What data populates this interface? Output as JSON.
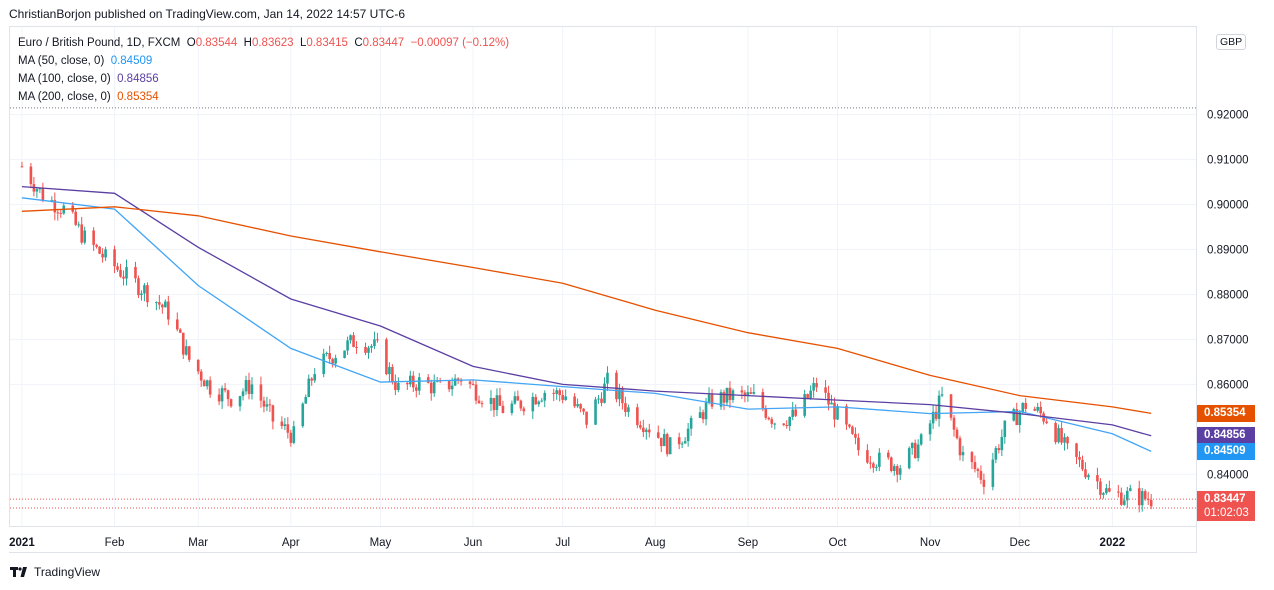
{
  "header": {
    "publisher_text": "ChristianBorjon published on TradingView.com, Jan 14, 2022 14:57 UTC-6"
  },
  "legend": {
    "symbol": "Euro / British Pound, 1D, FXCM",
    "ohlc": {
      "o_label": "O",
      "o": "0.83544",
      "h_label": "H",
      "h": "0.83623",
      "l_label": "L",
      "l": "0.83415",
      "c_label": "C",
      "c": "0.83447",
      "change": "−0.00097 (−0.12%)"
    },
    "ma50": {
      "label": "MA (50, close, 0)",
      "value": "0.84509"
    },
    "ma100": {
      "label": "MA (100, close, 0)",
      "value": "0.84856"
    },
    "ma200": {
      "label": "MA (200, close, 0)",
      "value": "0.85354"
    }
  },
  "currency_badge": "GBP",
  "price_tags": {
    "ma200": "0.85354",
    "ma100": "0.84856",
    "ma50": "0.84509",
    "current": "0.83447",
    "countdown": "01:02:03"
  },
  "footer": {
    "brand": "TradingView"
  },
  "colors": {
    "up": "#26a69a",
    "down": "#ef5350",
    "ma50": "#42a5f5",
    "ma100": "#5b3fa3",
    "ma200": "#e65100",
    "grid": "#f0f3fa"
  },
  "chart_data": {
    "type": "line",
    "title": "Euro / British Pound, 1D, FXCM",
    "price_axis": {
      "ticks": [
        0.92,
        0.91,
        0.9,
        0.89,
        0.88,
        0.87,
        0.86,
        0.84
      ],
      "tick_labels": [
        "0.92000",
        "0.91000",
        "0.90000",
        "0.89000",
        "0.88000",
        "0.87000",
        "0.86000",
        "0.84000"
      ],
      "ylim": [
        0.8285,
        0.9395
      ]
    },
    "time_axis": {
      "labels": [
        "2021",
        "Feb",
        "Mar",
        "Apr",
        "May",
        "Jun",
        "Jul",
        "Aug",
        "Sep",
        "Oct",
        "Nov",
        "Dec",
        "2022"
      ],
      "label_dates": [
        "2021-01-01",
        "2021-02-01",
        "2021-03-01",
        "2021-04-01",
        "2021-05-01",
        "2021-06-01",
        "2021-07-01",
        "2021-08-01",
        "2021-09-01",
        "2021-10-01",
        "2021-11-01",
        "2021-12-01",
        "2022-01-01"
      ]
    },
    "price_close_series": {
      "name": "EURGBP",
      "x": [
        "2021-01-01",
        "2021-01-08",
        "2021-01-15",
        "2021-01-22",
        "2021-01-29",
        "2021-02-05",
        "2021-02-12",
        "2021-02-19",
        "2021-02-26",
        "2021-03-05",
        "2021-03-12",
        "2021-03-19",
        "2021-03-26",
        "2021-04-02",
        "2021-04-09",
        "2021-04-16",
        "2021-04-23",
        "2021-04-30",
        "2021-05-07",
        "2021-05-14",
        "2021-05-21",
        "2021-05-28",
        "2021-06-04",
        "2021-06-11",
        "2021-06-18",
        "2021-06-25",
        "2021-07-02",
        "2021-07-09",
        "2021-07-16",
        "2021-07-23",
        "2021-07-30",
        "2021-08-06",
        "2021-08-13",
        "2021-08-20",
        "2021-08-27",
        "2021-09-03",
        "2021-09-10",
        "2021-09-17",
        "2021-09-24",
        "2021-10-01",
        "2021-10-08",
        "2021-10-15",
        "2021-10-22",
        "2021-10-29",
        "2021-11-05",
        "2021-11-12",
        "2021-11-19",
        "2021-11-26",
        "2021-12-03",
        "2021-12-10",
        "2021-12-17",
        "2021-12-24",
        "2021-12-31",
        "2022-01-07",
        "2022-01-14"
      ],
      "values": [
        0.9085,
        0.902,
        0.899,
        0.8925,
        0.888,
        0.884,
        0.8805,
        0.876,
        0.8655,
        0.8595,
        0.857,
        0.86,
        0.852,
        0.8485,
        0.8635,
        0.867,
        0.87,
        0.868,
        0.859,
        0.8605,
        0.859,
        0.8615,
        0.8575,
        0.8545,
        0.856,
        0.8585,
        0.8575,
        0.852,
        0.8605,
        0.8545,
        0.8505,
        0.846,
        0.8505,
        0.8565,
        0.8575,
        0.857,
        0.852,
        0.853,
        0.86,
        0.853,
        0.8455,
        0.843,
        0.842,
        0.847,
        0.857,
        0.844,
        0.839,
        0.85,
        0.8555,
        0.8525,
        0.845,
        0.8405,
        0.8355,
        0.8352,
        0.8345
      ]
    },
    "series": [
      {
        "name": "MA (50, close, 0)",
        "x": [
          "2021-01-01",
          "2021-02-01",
          "2021-03-01",
          "2021-04-01",
          "2021-05-01",
          "2021-06-01",
          "2021-07-01",
          "2021-08-01",
          "2021-09-01",
          "2021-10-01",
          "2021-11-01",
          "2021-12-01",
          "2022-01-01",
          "2022-01-14"
        ],
        "values": [
          0.9015,
          0.899,
          0.882,
          0.868,
          0.8605,
          0.861,
          0.8595,
          0.858,
          0.8545,
          0.855,
          0.8535,
          0.854,
          0.849,
          0.84509
        ]
      },
      {
        "name": "MA (100, close, 0)",
        "x": [
          "2021-01-01",
          "2021-02-01",
          "2021-03-01",
          "2021-04-01",
          "2021-05-01",
          "2021-06-01",
          "2021-07-01",
          "2021-08-01",
          "2021-09-01",
          "2021-10-01",
          "2021-11-01",
          "2021-12-01",
          "2022-01-01",
          "2022-01-14"
        ],
        "values": [
          0.904,
          0.9025,
          0.8905,
          0.879,
          0.873,
          0.864,
          0.86,
          0.8585,
          0.8575,
          0.8565,
          0.8555,
          0.8535,
          0.851,
          0.84856
        ]
      },
      {
        "name": "MA (200, close, 0)",
        "x": [
          "2021-01-01",
          "2021-02-01",
          "2021-03-01",
          "2021-04-01",
          "2021-05-01",
          "2021-06-01",
          "2021-07-01",
          "2021-08-01",
          "2021-09-01",
          "2021-10-01",
          "2021-11-01",
          "2021-12-01",
          "2022-01-01",
          "2022-01-14"
        ],
        "values": [
          0.8985,
          0.8995,
          0.8975,
          0.893,
          0.8895,
          0.886,
          0.8825,
          0.8765,
          0.8715,
          0.868,
          0.862,
          0.8575,
          0.855,
          0.85354
        ]
      }
    ],
    "last_price": 0.83447,
    "grid": true,
    "legend_position": "top-left"
  }
}
